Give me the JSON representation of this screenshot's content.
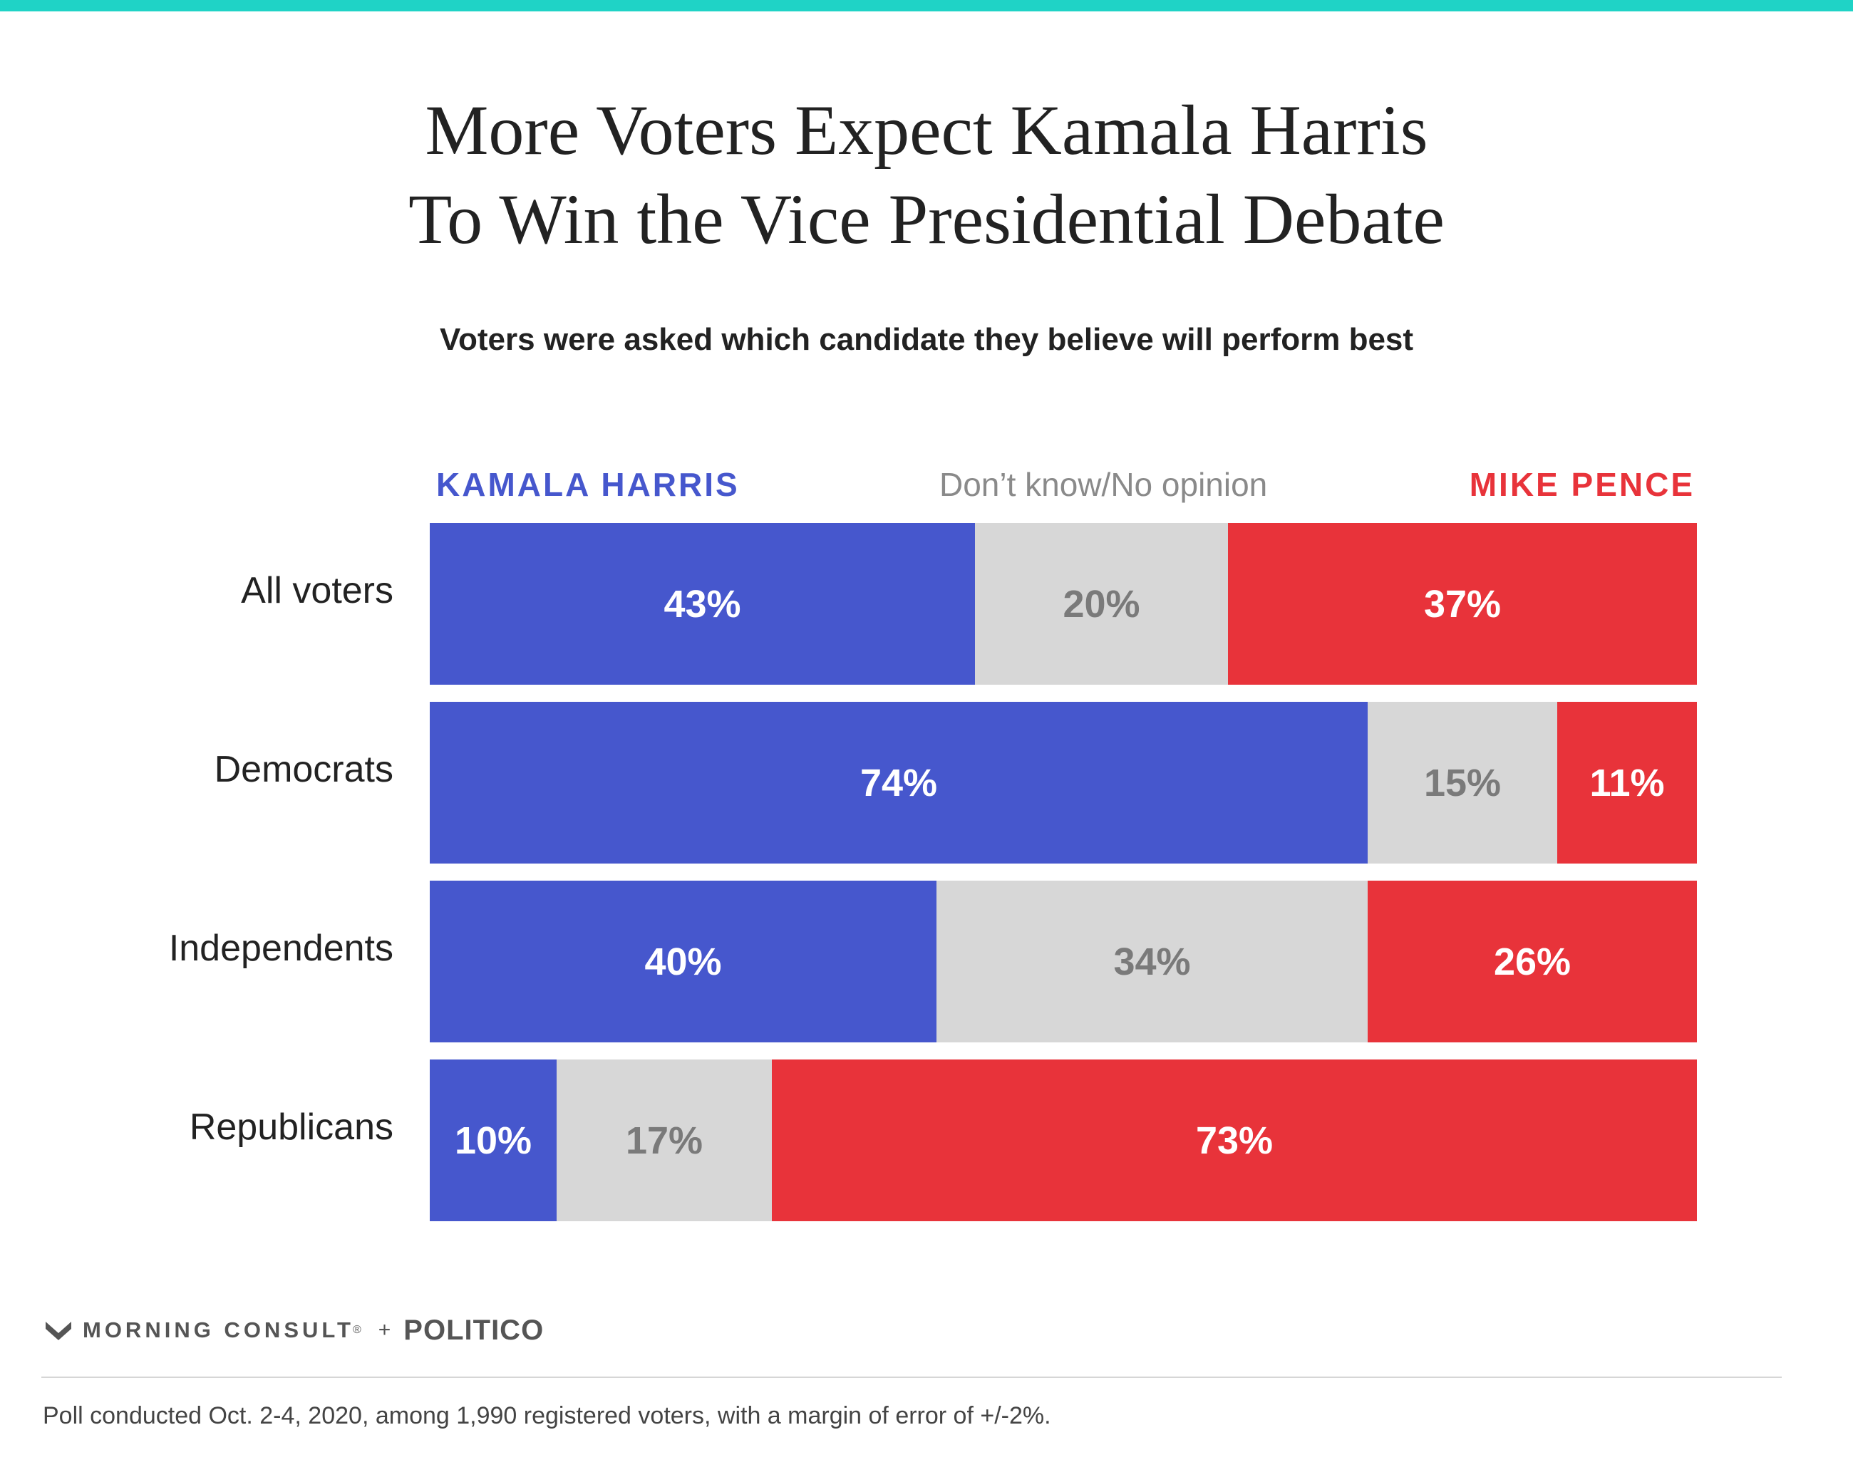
{
  "colors": {
    "top_rule": "#1fd3c6",
    "harris": "#4657cd",
    "dont_know": "#d7d7d7",
    "pence": "#e8333a",
    "label_on_dark": "#ffffff",
    "label_on_light": "#7a7a7a"
  },
  "title_lines": [
    "More Voters Expect Kamala Harris",
    "To Win the Vice Presidential Debate"
  ],
  "subtitle": "Voters were asked which candidate they believe will perform best",
  "legend": {
    "harris": "KAMALA HARRIS",
    "dont_know": "Don’t know/No opinion",
    "pence": "MIKE PENCE"
  },
  "chart_data": {
    "type": "bar",
    "orientation": "horizontal-stacked-100",
    "categories": [
      "All voters",
      "Democrats",
      "Independents",
      "Republicans"
    ],
    "series": [
      {
        "name": "KAMALA HARRIS",
        "key": "harris",
        "values": [
          43,
          74,
          40,
          10
        ],
        "labels": [
          "43%",
          "74%",
          "40%",
          "10%"
        ]
      },
      {
        "name": "Don’t know/No opinion",
        "key": "dont_know",
        "values": [
          20,
          15,
          34,
          17
        ],
        "labels": [
          "20%",
          "15%",
          "34%",
          "17%"
        ]
      },
      {
        "name": "MIKE PENCE",
        "key": "pence",
        "values": [
          37,
          11,
          26,
          73
        ],
        "labels": [
          "37%",
          "11%",
          "26%",
          "73%"
        ]
      }
    ],
    "xlim": [
      0,
      100
    ],
    "grid": false,
    "legend_position": "top"
  },
  "footer": {
    "brand_morning_consult": "MORNING CONSULT",
    "brand_trademark": "®",
    "brand_plus": "+",
    "brand_politico": "POLITICO",
    "note": "Poll conducted Oct. 2-4, 2020, among 1,990 registered voters, with a margin of error of +/-2%."
  }
}
